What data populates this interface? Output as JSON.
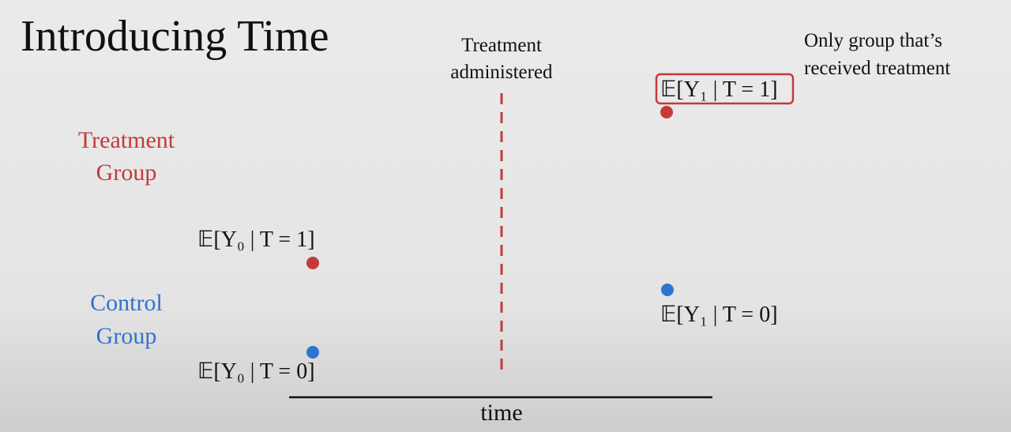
{
  "title": "Introducing Time",
  "treatment_marker": {
    "lines": [
      "Treatment",
      "administered"
    ]
  },
  "groups": [
    {
      "lines": [
        "Treatment",
        "Group"
      ]
    },
    {
      "lines": [
        "Control",
        "Group"
      ]
    }
  ],
  "expressions": [
    "𝔼[Y₀ | T = 1]",
    "𝔼[Y₀ | T = 0]",
    "𝔼[Y₁ | T = 1]",
    "𝔼[Y₁ | T = 0]"
  ],
  "note": {
    "lines": [
      "Only group that’s",
      "received treatment"
    ]
  },
  "axis_label": "time"
}
